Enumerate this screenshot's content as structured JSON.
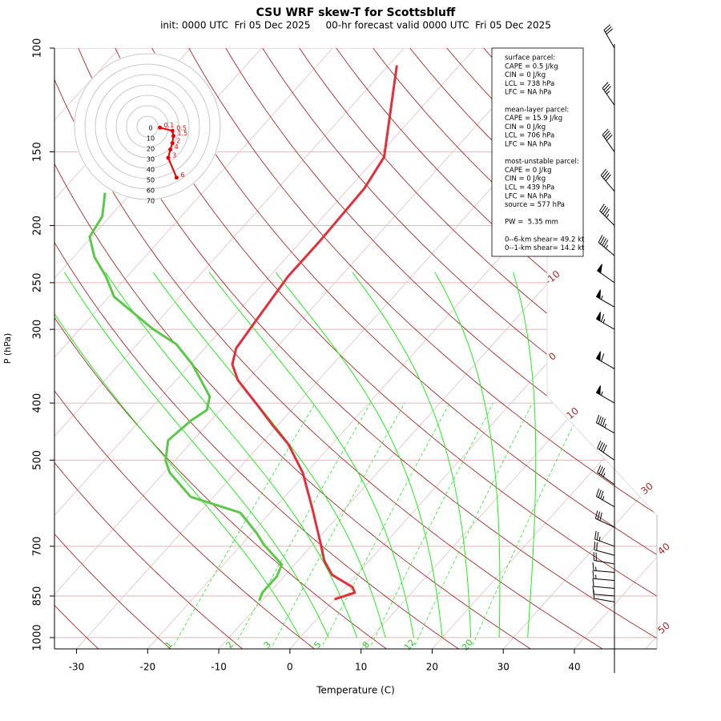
{
  "chart_data": {
    "type": "skewt",
    "title": "CSU WRF skew-T for Scottsbluff",
    "subtitle": "init: 0000 UTC  Fri 05 Dec 2025     00-hr forecast valid 0000 UTC  Fri 05 Dec 2025",
    "x_label": "Temperature (C)",
    "y_label": "P (hPa)",
    "xlim": [
      -33.1,
      51.6
    ],
    "xticks": [
      -30,
      -20,
      -10,
      0,
      10,
      20,
      30,
      40
    ],
    "ylim": [
      1045,
      100
    ],
    "yticks": [
      100,
      150,
      200,
      250,
      300,
      400,
      500,
      700,
      850,
      1000
    ],
    "log_y": true,
    "temperature": {
      "color": "#e0303c",
      "pressure": [
        107,
        153,
        173,
        212,
        244,
        290,
        323,
        344,
        366,
        402,
        435,
        470,
        525,
        604,
        691,
        741,
        783,
        821,
        839,
        861
      ],
      "values": [
        -58.8,
        -49.0,
        -47.8,
        -47.4,
        -47.4,
        -46.3,
        -45.6,
        -44.1,
        -41.3,
        -35.6,
        -30.9,
        -26.1,
        -20.5,
        -14.6,
        -9.1,
        -6.3,
        -3.4,
        1.0,
        2.0,
        0.0
      ]
    },
    "dewpoint": {
      "color": "#5cc84a",
      "pressure": [
        176,
        193,
        209,
        226,
        244,
        264,
        299,
        318,
        344,
        390,
        411,
        428,
        463,
        501,
        525,
        577,
        614,
        664,
        696,
        752,
        788,
        839,
        866
      ],
      "values": [
        -83.7,
        -81.1,
        -80.3,
        -77.1,
        -73.0,
        -69.3,
        -59.9,
        -54.5,
        -49.7,
        -43.2,
        -41.9,
        -42.8,
        -43.5,
        -41.3,
        -39.2,
        -33.2,
        -24.2,
        -19.4,
        -16.8,
        -11.8,
        -11.0,
        -11.0,
        -10.4
      ]
    },
    "isotherms": [
      -110,
      -100,
      -90,
      -80,
      -70,
      -60,
      -50,
      -40,
      -30,
      -20,
      -10,
      0,
      10,
      20,
      30,
      40,
      50
    ],
    "isotherm_labels": [
      -10,
      0,
      10,
      30,
      40,
      50
    ],
    "dry_adiabats": [
      -50,
      -40,
      -30,
      -20,
      -10,
      0,
      10,
      20,
      30,
      40,
      50,
      60,
      70,
      80,
      90,
      100,
      110,
      120,
      130,
      140,
      150,
      160,
      170,
      180,
      190,
      200
    ],
    "moist_adiabats": [
      0,
      4,
      8,
      12,
      16,
      20,
      24,
      28,
      32
    ],
    "mixing_ratios": [
      1,
      2,
      3,
      5,
      8,
      12,
      20
    ],
    "winds": {
      "pressure": [
        870,
        850,
        825,
        800,
        775,
        750,
        725,
        700,
        650,
        600,
        550,
        500,
        450,
        400,
        350,
        300,
        275,
        250,
        225,
        200,
        175,
        150,
        125,
        100
      ],
      "speed": [
        10,
        10,
        10,
        15,
        15,
        20,
        20,
        25,
        30,
        35,
        35,
        40,
        45,
        55,
        60,
        65,
        55,
        50,
        45,
        45,
        40,
        40,
        35,
        30
      ],
      "direction": [
        280,
        275,
        275,
        275,
        275,
        280,
        285,
        290,
        295,
        300,
        305,
        305,
        300,
        300,
        300,
        300,
        300,
        305,
        310,
        315,
        320,
        325,
        325,
        330
      ]
    },
    "hodograph": {
      "rings": [
        0,
        10,
        20,
        30,
        40,
        50,
        60,
        70
      ],
      "u": [
        12,
        24,
        25,
        24,
        22,
        20,
        28
      ],
      "v": [
        -1,
        -4,
        -9,
        -16,
        -22,
        -30,
        -49
      ],
      "labels": [
        "0.1",
        "0.5",
        "1.5",
        "2",
        "4",
        "3",
        "6"
      ]
    },
    "info_box": [
      [
        "surface parcel:",
        "CAPE = 0.5 J/kg",
        "CIN = 0 J/kg",
        "LCL = 738 hPa",
        "LFC = NA hPa"
      ],
      [
        "mean-layer parcel:",
        "CAPE = 15.9 J/kg",
        "CIN = 0 J/kg",
        "LCL = 706 hPa",
        "LFC = NA hPa"
      ],
      [
        "most-unstable parcel:",
        "CAPE = 0 J/kg",
        "CIN = 0 J/kg",
        "LCL = 439 hPa",
        "LFC = NA hPa",
        "source = 577 hPa"
      ],
      [
        "PW =  5.35 mm"
      ],
      [
        "0--6-km shear= 49.2 kt",
        "0--1-km shear= 14.2 kt"
      ]
    ]
  }
}
